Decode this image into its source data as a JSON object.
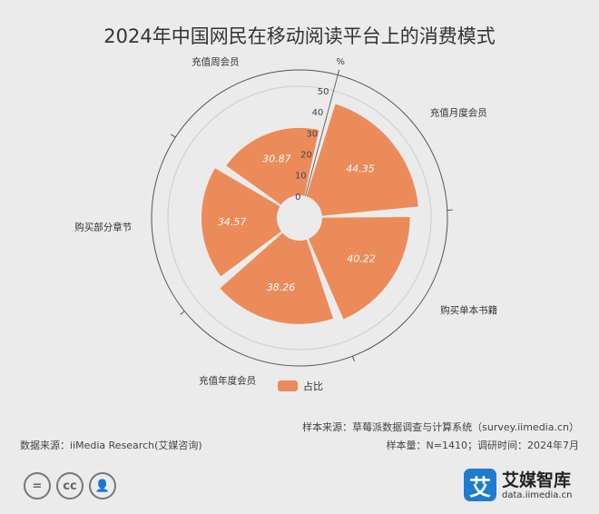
{
  "title": "2024年中国网民在移动阅读平台上的消费模式",
  "chart_data": {
    "type": "polar-bar",
    "title": "2024年中国网民在移动阅读平台上的消费模式",
    "unit": "%",
    "radial_axis": {
      "min": 0,
      "max": 50,
      "ticks": [
        0,
        10,
        20,
        30,
        40,
        50
      ]
    },
    "categories": [
      "充值月度会员",
      "购买单本书籍",
      "充值年度会员",
      "购买部分章节",
      "充值周会员"
    ],
    "series": [
      {
        "name": "占比",
        "values": [
          44.35,
          40.22,
          38.26,
          34.57,
          30.87
        ]
      }
    ],
    "legend": "bottom-center",
    "color": "#ec8b5a"
  },
  "legend": {
    "label": "占比",
    "color": "#ec8b5a"
  },
  "footer": {
    "data_source": "数据来源：iiMedia Research(艾媒咨询)",
    "sample_source": "样本来源：草莓派数据调查与计算系统（survey.iimedia.cn）",
    "sample_info": "样本量：N=1410；调研时间：2024年7月"
  },
  "license_icons": [
    "equals-icon",
    "cc-icon",
    "person-icon"
  ],
  "license_glyphs": [
    "=",
    "cc",
    "👤"
  ],
  "brand": {
    "logo_char": "艾",
    "name": "艾媒智库",
    "url": "data.iimedia.cn"
  }
}
